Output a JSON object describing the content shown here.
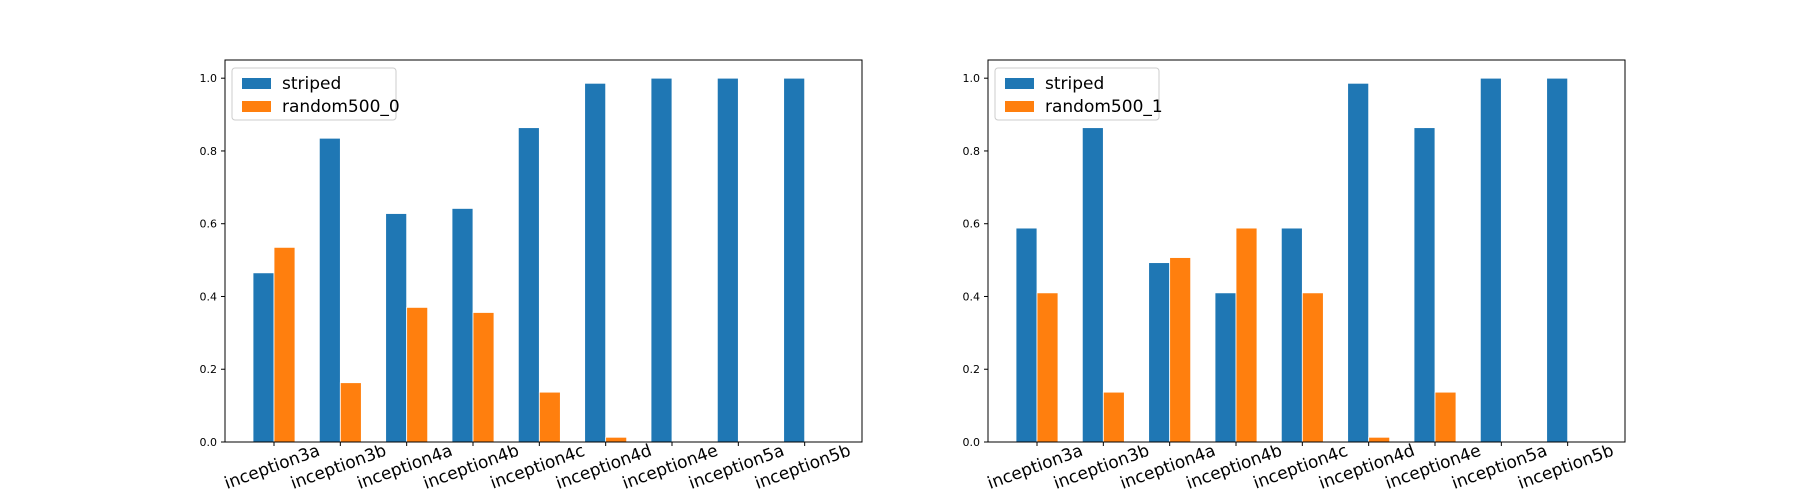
{
  "chart_data": [
    {
      "type": "bar",
      "categories": [
        "inception3a",
        "inception3b",
        "inception4a",
        "inception4b",
        "inception4c",
        "inception4d",
        "inception4e",
        "inception5a",
        "inception5b"
      ],
      "series": [
        {
          "name": "striped",
          "values": [
            0.465,
            0.835,
            0.628,
            0.642,
            0.864,
            0.986,
            1.0,
            1.0,
            1.0
          ]
        },
        {
          "name": "random500_0",
          "values": [
            0.535,
            0.163,
            0.37,
            0.356,
            0.137,
            0.013,
            0.0,
            0.0,
            0.0
          ]
        }
      ],
      "ylim": [
        0,
        1.05
      ],
      "yticks": [
        "0.0",
        "0.2",
        "0.4",
        "0.6",
        "0.8",
        "1.0"
      ],
      "legend_position": "top-left",
      "grid": false
    },
    {
      "type": "bar",
      "categories": [
        "inception3a",
        "inception3b",
        "inception4a",
        "inception4b",
        "inception4c",
        "inception4d",
        "inception4e",
        "inception5a",
        "inception5b"
      ],
      "series": [
        {
          "name": "striped",
          "values": [
            0.588,
            0.864,
            0.493,
            0.41,
            0.588,
            0.986,
            0.864,
            1.0,
            1.0
          ]
        },
        {
          "name": "random500_1",
          "values": [
            0.41,
            0.137,
            0.507,
            0.588,
            0.41,
            0.013,
            0.137,
            0.0,
            0.0
          ]
        }
      ],
      "ylim": [
        0,
        1.05
      ],
      "yticks": [
        "0.0",
        "0.2",
        "0.4",
        "0.6",
        "0.8",
        "1.0"
      ],
      "legend_position": "top-left",
      "grid": false
    }
  ],
  "colors": {
    "series_0": "#1f77b4",
    "series_1": "#ff7f0e"
  }
}
